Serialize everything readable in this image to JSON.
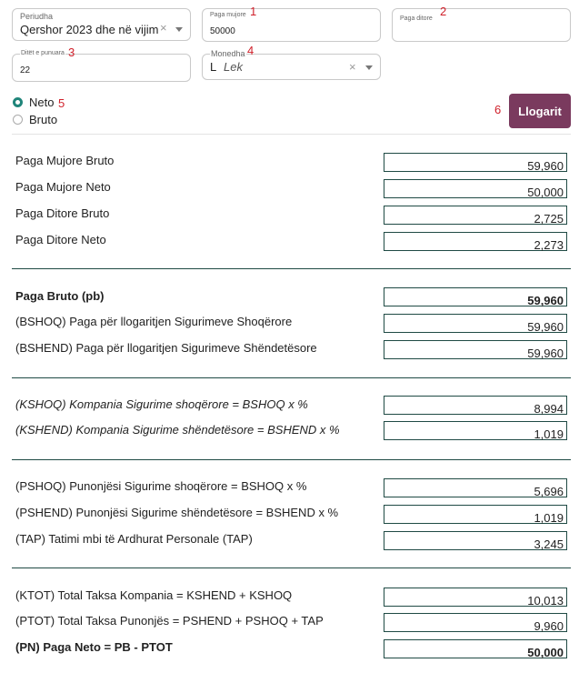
{
  "form": {
    "periudha": {
      "label": "Periudha",
      "value": "Qershor 2023 dhe në vijim"
    },
    "paga_mujore": {
      "label": "Paga mujore",
      "value": "50000"
    },
    "paga_ditore": {
      "label": "Paga ditore",
      "value": ""
    },
    "ditet_e_punuara": {
      "label": "Ditët e punuara",
      "value": "22"
    },
    "monedha": {
      "label": "Monedha",
      "symbol": "L",
      "value": "Lek"
    },
    "clear_glyph": "×",
    "neto_label": "Neto",
    "bruto_label": "Bruto",
    "selected": "Neto",
    "calc_button": "Llogarit"
  },
  "markers": [
    "1",
    "2",
    "3",
    "4",
    "5",
    "6"
  ],
  "summary": [
    {
      "label": "Paga Mujore Bruto",
      "value": "59,960"
    },
    {
      "label": "Paga Mujore Neto",
      "value": "50,000"
    },
    {
      "label": "Paga Ditore Bruto",
      "value": "2,725"
    },
    {
      "label": "Paga Ditore Neto",
      "value": "2,273"
    }
  ],
  "gross": [
    {
      "label": "Paga Bruto (pb)",
      "value": "59,960"
    },
    {
      "label": "(BSHOQ) Paga për llogaritjen Sigurimeve Shoqërore",
      "value": "59,960"
    },
    {
      "label": "(BSHEND) Paga për llogaritjen Sigurimeve Shëndetësore",
      "value": "59,960"
    }
  ],
  "company": [
    {
      "label": "(KSHOQ) Kompania Sigurime shoqërore = BSHOQ x %",
      "value": "8,994"
    },
    {
      "label": "(KSHEND) Kompania Sigurime shëndetësore = BSHEND x %",
      "value": "1,019"
    }
  ],
  "employee": [
    {
      "label": "(PSHOQ) Punonjësi Sigurime shoqërore = BSHOQ x %",
      "value": "5,696"
    },
    {
      "label": "(PSHEND) Punonjësi Sigurime shëndetësore = BSHEND x %",
      "value": "1,019"
    },
    {
      "label": "(TAP) Tatimi mbi të Ardhurat Personale (TAP)",
      "value": "3,245"
    }
  ],
  "totals": [
    {
      "label": "(KTOT) Total Taksa Kompania = KSHEND + KSHOQ",
      "value": "10,013"
    },
    {
      "label": "(PTOT) Total Taksa Punonjës = PSHEND + PSHOQ + TAP",
      "value": "9,960"
    },
    {
      "label": "(PN) Paga Neto = PB - PTOT",
      "value": "50,000"
    }
  ],
  "colors": {
    "accent": "#7a3a5e",
    "radio": "#20857a",
    "marker": "#d0202a",
    "border_dark": "#1f4a44"
  }
}
